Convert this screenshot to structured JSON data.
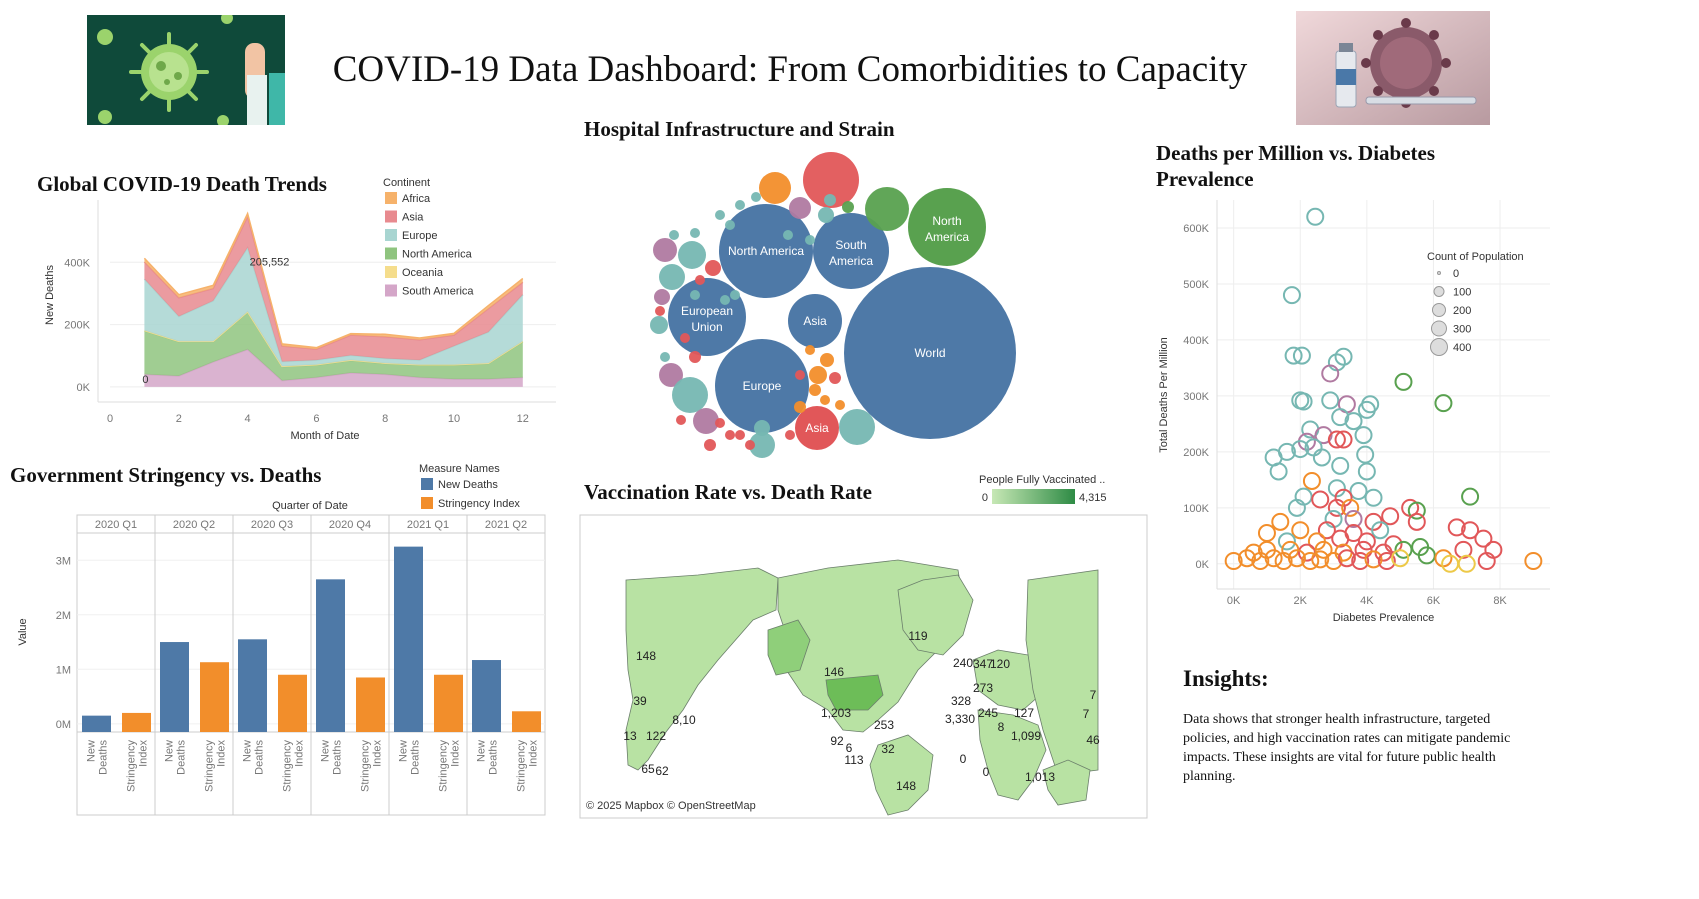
{
  "header": {
    "title": "COVID-19 Data Dashboard: From Comorbidities to Capacity"
  },
  "colors": {
    "Africa": "#f6b26b",
    "Asia": "#e88a8f",
    "Europe": "#a8d5d1",
    "North America": "#8fc47f",
    "Oceania": "#f5dd8c",
    "South America": "#d4a6c8",
    "new_deaths": "#4e79a7",
    "stringency": "#f28e2b",
    "map_low": "#c7e8b5",
    "map_high": "#2e8b45"
  },
  "trends": {
    "title": "Global COVID-19 Death Trends",
    "legend_title": "Continent",
    "annotation_peak": "205,552",
    "annotation_zero": "0"
  },
  "stringency": {
    "title": "Government Stringency vs. Deaths",
    "legend_title": "Measure Names",
    "column_header": "Quarter of Date"
  },
  "hospital": {
    "title": "Hospital Infrastructure and Strain"
  },
  "vaccination": {
    "title": "Vaccination Rate vs. Death Rate",
    "legend_title": "People Fully Vaccinated ..",
    "legend_min": "0",
    "legend_max": "4,315",
    "attribution": "© 2025 Mapbox © OpenStreetMap"
  },
  "diabetes": {
    "title": "Deaths per Million vs. Diabetes Prevalence",
    "legend_title": "Count of Population",
    "legend_sizes": [
      "0",
      "100",
      "200",
      "300",
      "400"
    ]
  },
  "insights": {
    "title": "Insights:",
    "body": "Data shows that stronger health infrastructure, targeted policies, and high vaccination rates can mitigate pandemic impacts. These insights are vital for future public health planning."
  },
  "chart_data": [
    {
      "type": "area",
      "title": "Global COVID-19 Death Trends",
      "xlabel": "Month of Date",
      "ylabel": "New Deaths",
      "x": [
        1,
        2,
        3,
        4,
        5,
        6,
        7,
        8,
        9,
        10,
        11,
        12
      ],
      "xlim": [
        0,
        12.5
      ],
      "ylim": [
        -10000,
        600000
      ],
      "x_ticks": [
        "0",
        "2",
        "4",
        "6",
        "8",
        "10",
        "12"
      ],
      "y_ticks": [
        "0K",
        "200K",
        "400K"
      ],
      "legend": "top-right",
      "series": [
        {
          "name": "South America",
          "values": [
            40000,
            35000,
            80000,
            120000,
            20000,
            30000,
            45000,
            40000,
            30000,
            25000,
            25000,
            30000
          ]
        },
        {
          "name": "North America",
          "values": [
            140000,
            110000,
            65000,
            120000,
            45000,
            40000,
            40000,
            35000,
            40000,
            45000,
            50000,
            115000
          ]
        },
        {
          "name": "Oceania",
          "values": [
            1000,
            1000,
            1000,
            1000,
            1000,
            1000,
            1000,
            1000,
            1000,
            1000,
            1000,
            1000
          ]
        },
        {
          "name": "Europe",
          "values": [
            165000,
            80000,
            130000,
            205552,
            15000,
            15000,
            15000,
            15000,
            15000,
            60000,
            100000,
            150000
          ]
        },
        {
          "name": "Asia",
          "values": [
            55000,
            60000,
            40000,
            100000,
            50000,
            35000,
            65000,
            70000,
            65000,
            35000,
            75000,
            40000
          ]
        },
        {
          "name": "Africa",
          "values": [
            12000,
            10000,
            10000,
            10000,
            7000,
            5000,
            5000,
            8000,
            6000,
            6000,
            10000,
            12000
          ]
        }
      ]
    },
    {
      "type": "bar",
      "title": "Government Stringency vs. Deaths",
      "ylabel": "Value",
      "categories": [
        "2020 Q1",
        "2020 Q2",
        "2020 Q3",
        "2020 Q4",
        "2021 Q1",
        "2021 Q2"
      ],
      "measures": [
        "New Deaths",
        "Stringency Index"
      ],
      "ylim": [
        -150000,
        3500000
      ],
      "y_ticks": [
        "0M",
        "1M",
        "2M",
        "3M"
      ],
      "series": [
        {
          "name": "New Deaths",
          "values": [
            150000,
            1500000,
            1550000,
            2650000,
            3250000,
            1170000
          ]
        },
        {
          "name": "Stringency Index",
          "values": [
            200000,
            1130000,
            900000,
            850000,
            900000,
            230000
          ]
        }
      ]
    },
    {
      "type": "bubble",
      "title": "Hospital Infrastructure and Strain",
      "labeled": [
        {
          "label": "World",
          "size": 100,
          "group": "world"
        },
        {
          "label": "North America",
          "size": 38,
          "group": "world"
        },
        {
          "label": "South America",
          "size": 25,
          "group": "world"
        },
        {
          "label": "European Union",
          "size": 25,
          "group": "world"
        },
        {
          "label": "Europe",
          "size": 38,
          "group": "world"
        },
        {
          "label": "Asia",
          "size": 16,
          "group": "world"
        },
        {
          "label": "North America",
          "size": 16,
          "group": "North America"
        },
        {
          "label": "Asia",
          "size": 8,
          "group": "Asia"
        }
      ]
    },
    {
      "type": "map",
      "title": "Vaccination Rate vs. Death Rate",
      "measure": "People Fully Vaccinated",
      "range": [
        0,
        4315
      ],
      "labels": [
        "148",
        "39",
        "8,10",
        "13",
        "122",
        "65",
        "62",
        "146",
        "1,203",
        "253",
        "92",
        "6",
        "32",
        "113",
        "148",
        "119",
        "240",
        "347",
        "120",
        "328",
        "273",
        "3,330",
        "7",
        "245",
        "127",
        "8",
        "1,099",
        "46",
        "7",
        "0",
        "0",
        "1,013"
      ]
    },
    {
      "type": "scatter",
      "title": "Deaths per Million vs. Diabetes Prevalence",
      "xlabel": "Diabetes Prevalence",
      "ylabel": "Total Deaths Per Million",
      "xlim": [
        -200,
        9500
      ],
      "ylim": [
        -20000,
        650000
      ],
      "x_ticks": [
        "0K",
        "2K",
        "4K",
        "6K",
        "8K"
      ],
      "y_ticks": [
        "0K",
        "100K",
        "200K",
        "300K",
        "400K",
        "500K",
        "600K"
      ],
      "legend": "top-right",
      "points": [
        {
          "x": 2450,
          "y": 620000,
          "c": "Europe"
        },
        {
          "x": 1750,
          "y": 480000,
          "c": "Europe"
        },
        {
          "x": 1800,
          "y": 372000,
          "c": "Europe"
        },
        {
          "x": 2050,
          "y": 372000,
          "c": "Europe"
        },
        {
          "x": 3100,
          "y": 360000,
          "c": "Europe"
        },
        {
          "x": 3300,
          "y": 370000,
          "c": "Europe"
        },
        {
          "x": 2900,
          "y": 340000,
          "c": "South America"
        },
        {
          "x": 5100,
          "y": 325000,
          "c": "North America"
        },
        {
          "x": 6300,
          "y": 287000,
          "c": "North America"
        },
        {
          "x": 2000,
          "y": 292000,
          "c": "Europe"
        },
        {
          "x": 2100,
          "y": 290000,
          "c": "Europe"
        },
        {
          "x": 2900,
          "y": 292000,
          "c": "Europe"
        },
        {
          "x": 3400,
          "y": 285000,
          "c": "South America"
        },
        {
          "x": 4100,
          "y": 285000,
          "c": "Europe"
        },
        {
          "x": 4000,
          "y": 275000,
          "c": "Europe"
        },
        {
          "x": 3200,
          "y": 262000,
          "c": "Europe"
        },
        {
          "x": 3600,
          "y": 255000,
          "c": "Europe"
        },
        {
          "x": 2300,
          "y": 240000,
          "c": "Europe"
        },
        {
          "x": 2700,
          "y": 230000,
          "c": "South America"
        },
        {
          "x": 3100,
          "y": 222000,
          "c": "Asia"
        },
        {
          "x": 3300,
          "y": 222000,
          "c": "Asia"
        },
        {
          "x": 2200,
          "y": 218000,
          "c": "South America"
        },
        {
          "x": 2400,
          "y": 208000,
          "c": "Europe"
        },
        {
          "x": 3900,
          "y": 230000,
          "c": "Europe"
        },
        {
          "x": 1200,
          "y": 190000,
          "c": "Europe"
        },
        {
          "x": 1600,
          "y": 200000,
          "c": "Europe"
        },
        {
          "x": 2000,
          "y": 205000,
          "c": "Europe"
        },
        {
          "x": 2650,
          "y": 190000,
          "c": "Europe"
        },
        {
          "x": 3950,
          "y": 195000,
          "c": "Europe"
        },
        {
          "x": 1350,
          "y": 165000,
          "c": "Europe"
        },
        {
          "x": 3200,
          "y": 175000,
          "c": "Europe"
        },
        {
          "x": 4000,
          "y": 165000,
          "c": "Europe"
        },
        {
          "x": 2350,
          "y": 148000,
          "c": "Africa"
        },
        {
          "x": 3100,
          "y": 135000,
          "c": "Europe"
        },
        {
          "x": 3750,
          "y": 130000,
          "c": "Europe"
        },
        {
          "x": 2100,
          "y": 120000,
          "c": "Europe"
        },
        {
          "x": 2600,
          "y": 115000,
          "c": "Asia"
        },
        {
          "x": 3300,
          "y": 118000,
          "c": "Asia"
        },
        {
          "x": 4200,
          "y": 118000,
          "c": "Europe"
        },
        {
          "x": 7100,
          "y": 120000,
          "c": "North America"
        },
        {
          "x": 1900,
          "y": 100000,
          "c": "Europe"
        },
        {
          "x": 3100,
          "y": 100000,
          "c": "Asia"
        },
        {
          "x": 3500,
          "y": 100000,
          "c": "Africa"
        },
        {
          "x": 5300,
          "y": 100000,
          "c": "Asia"
        },
        {
          "x": 5500,
          "y": 95000,
          "c": "North America"
        },
        {
          "x": 1400,
          "y": 75000,
          "c": "Africa"
        },
        {
          "x": 3000,
          "y": 80000,
          "c": "Europe"
        },
        {
          "x": 3600,
          "y": 80000,
          "c": "South America"
        },
        {
          "x": 4200,
          "y": 75000,
          "c": "Asia"
        },
        {
          "x": 4700,
          "y": 85000,
          "c": "Asia"
        },
        {
          "x": 5500,
          "y": 75000,
          "c": "Asia"
        },
        {
          "x": 6700,
          "y": 65000,
          "c": "Asia"
        },
        {
          "x": 7100,
          "y": 60000,
          "c": "Asia"
        },
        {
          "x": 1000,
          "y": 55000,
          "c": "Africa"
        },
        {
          "x": 2000,
          "y": 60000,
          "c": "Africa"
        },
        {
          "x": 2800,
          "y": 60000,
          "c": "Asia"
        },
        {
          "x": 3600,
          "y": 55000,
          "c": "Asia"
        },
        {
          "x": 4400,
          "y": 60000,
          "c": "Europe"
        },
        {
          "x": 1600,
          "y": 40000,
          "c": "Europe"
        },
        {
          "x": 2500,
          "y": 40000,
          "c": "Africa"
        },
        {
          "x": 3200,
          "y": 45000,
          "c": "Asia"
        },
        {
          "x": 4000,
          "y": 40000,
          "c": "Asia"
        },
        {
          "x": 4800,
          "y": 35000,
          "c": "Asia"
        },
        {
          "x": 7500,
          "y": 45000,
          "c": "Asia"
        },
        {
          "x": 5600,
          "y": 30000,
          "c": "North America"
        },
        {
          "x": 600,
          "y": 20000,
          "c": "Africa"
        },
        {
          "x": 1000,
          "y": 25000,
          "c": "Africa"
        },
        {
          "x": 1700,
          "y": 25000,
          "c": "Africa"
        },
        {
          "x": 2200,
          "y": 20000,
          "c": "Asia"
        },
        {
          "x": 2700,
          "y": 25000,
          "c": "Africa"
        },
        {
          "x": 3300,
          "y": 20000,
          "c": "Africa"
        },
        {
          "x": 3900,
          "y": 25000,
          "c": "Asia"
        },
        {
          "x": 4500,
          "y": 20000,
          "c": "Asia"
        },
        {
          "x": 5100,
          "y": 25000,
          "c": "North America"
        },
        {
          "x": 6900,
          "y": 25000,
          "c": "Asia"
        },
        {
          "x": 7800,
          "y": 25000,
          "c": "Asia"
        },
        {
          "x": 5800,
          "y": 15000,
          "c": "North America"
        },
        {
          "x": 0,
          "y": 5000,
          "c": "Africa"
        },
        {
          "x": 400,
          "y": 10000,
          "c": "Africa"
        },
        {
          "x": 800,
          "y": 5000,
          "c": "Africa"
        },
        {
          "x": 1200,
          "y": 10000,
          "c": "Africa"
        },
        {
          "x": 1500,
          "y": 5000,
          "c": "Africa"
        },
        {
          "x": 1900,
          "y": 10000,
          "c": "Africa"
        },
        {
          "x": 2300,
          "y": 5000,
          "c": "Africa"
        },
        {
          "x": 2600,
          "y": 8000,
          "c": "Africa"
        },
        {
          "x": 3000,
          "y": 5000,
          "c": "Africa"
        },
        {
          "x": 3400,
          "y": 10000,
          "c": "Asia"
        },
        {
          "x": 3800,
          "y": 5000,
          "c": "Asia"
        },
        {
          "x": 4200,
          "y": 8000,
          "c": "Africa"
        },
        {
          "x": 4600,
          "y": 5000,
          "c": "Asia"
        },
        {
          "x": 5000,
          "y": 10000,
          "c": "Oceania"
        },
        {
          "x": 6300,
          "y": 10000,
          "c": "Africa"
        },
        {
          "x": 6500,
          "y": 0,
          "c": "Oceania"
        },
        {
          "x": 7000,
          "y": 0,
          "c": "Oceania"
        },
        {
          "x": 7600,
          "y": 5000,
          "c": "Asia"
        },
        {
          "x": 9000,
          "y": 5000,
          "c": "Africa"
        }
      ]
    }
  ]
}
